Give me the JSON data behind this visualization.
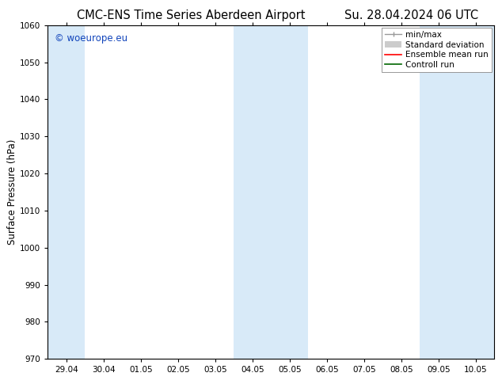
{
  "title_left": "CMC-ENS Time Series Aberdeen Airport",
  "title_right": "Su. 28.04.2024 06 UTC",
  "ylabel": "Surface Pressure (hPa)",
  "ylim": [
    970,
    1060
  ],
  "yticks": [
    970,
    980,
    990,
    1000,
    1010,
    1020,
    1030,
    1040,
    1050,
    1060
  ],
  "xtick_labels": [
    "29.04",
    "30.04",
    "01.05",
    "02.05",
    "03.05",
    "04.05",
    "05.05",
    "06.05",
    "07.05",
    "08.05",
    "09.05",
    "10.05"
  ],
  "xtick_positions": [
    0,
    1,
    2,
    3,
    4,
    5,
    6,
    7,
    8,
    9,
    10,
    11
  ],
  "xlim": [
    -0.5,
    11.5
  ],
  "shaded_bands": [
    {
      "x_start": -0.5,
      "x_end": 0.5
    },
    {
      "x_start": 4.5,
      "x_end": 5.5
    },
    {
      "x_start": 5.5,
      "x_end": 6.5
    },
    {
      "x_start": 9.5,
      "x_end": 10.5
    },
    {
      "x_start": 10.5,
      "x_end": 11.5
    }
  ],
  "band_color": "#d8eaf8",
  "background_color": "#ffffff",
  "watermark_text": "© woeurope.eu",
  "watermark_color": "#1144bb",
  "legend_labels": [
    "min/max",
    "Standard deviation",
    "Ensemble mean run",
    "Controll run"
  ],
  "legend_colors": [
    "#999999",
    "#cccccc",
    "#ff0000",
    "#006600"
  ],
  "title_fontsize": 10.5,
  "axis_label_fontsize": 8.5,
  "tick_fontsize": 7.5,
  "watermark_fontsize": 8.5,
  "legend_fontsize": 7.5
}
